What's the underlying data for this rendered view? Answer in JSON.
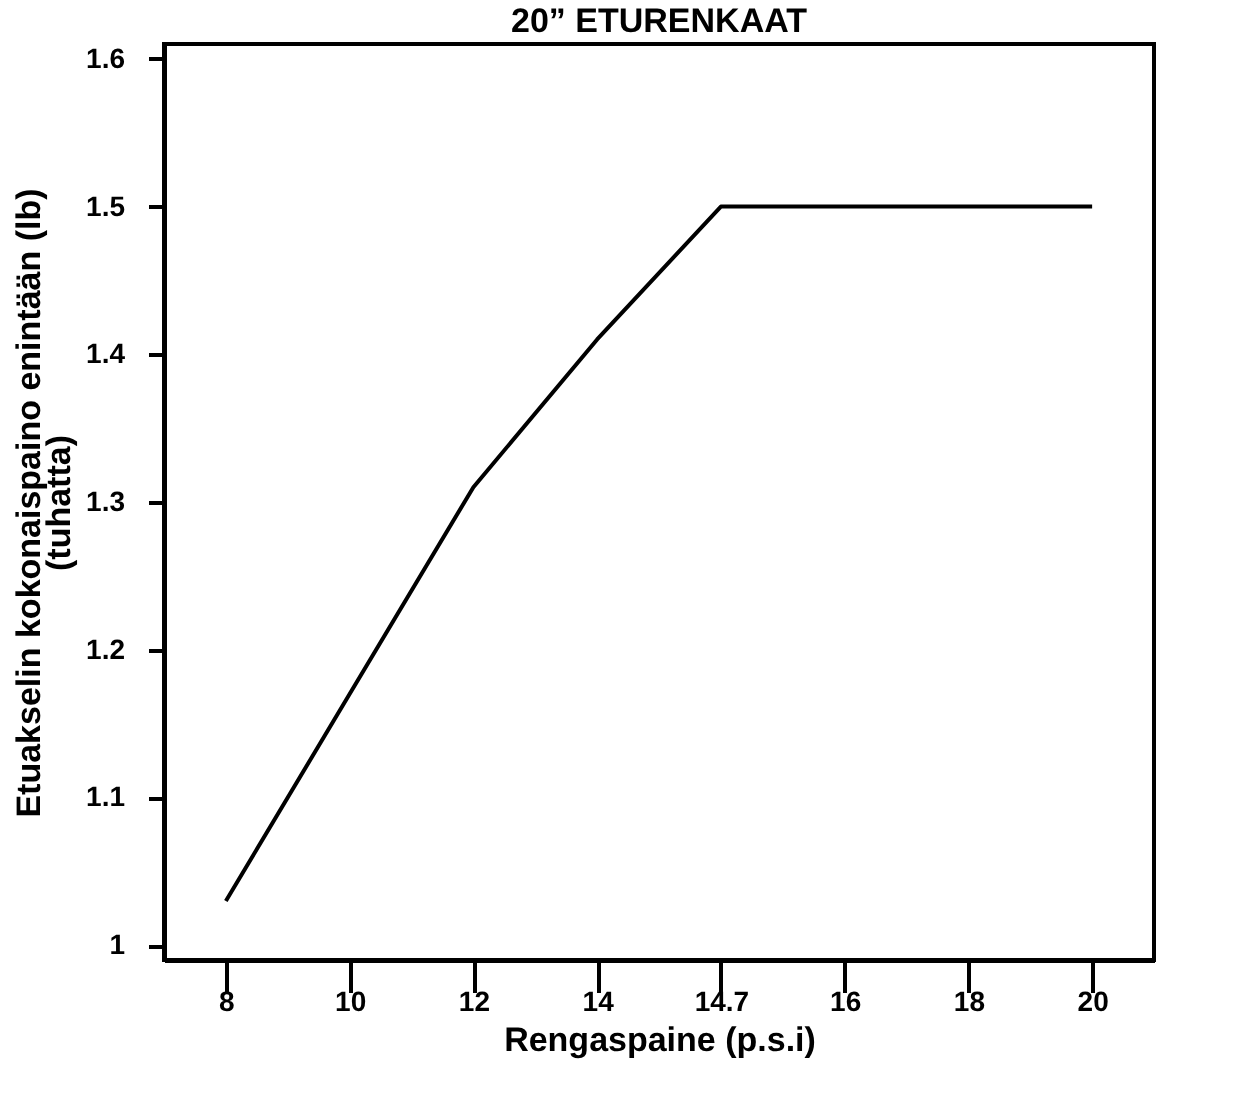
{
  "chart_data": {
    "type": "line",
    "title": "20” ETURENKAAT",
    "xlabel": "Rengaspaine (p.s.i)",
    "ylabel": [
      "Etuakselin kokonaispaino enintään (lb)",
      "(tuhatta)"
    ],
    "categories": [
      "8",
      "10",
      "12",
      "14",
      "14.7",
      "16",
      "18",
      "20"
    ],
    "series": [
      {
        "color": "#000000",
        "values": [
          1.03,
          1.17,
          1.31,
          1.41,
          1.5,
          1.5,
          1.5,
          1.5
        ]
      }
    ],
    "ylim": [
      0.99,
      1.61
    ],
    "yticks": [
      {
        "value": 1,
        "label": "1"
      },
      1.1,
      1.2,
      1.3,
      1.4,
      1.5,
      1.6
    ],
    "grid": false,
    "legend": false,
    "marker": "none",
    "line_style": "solid"
  }
}
